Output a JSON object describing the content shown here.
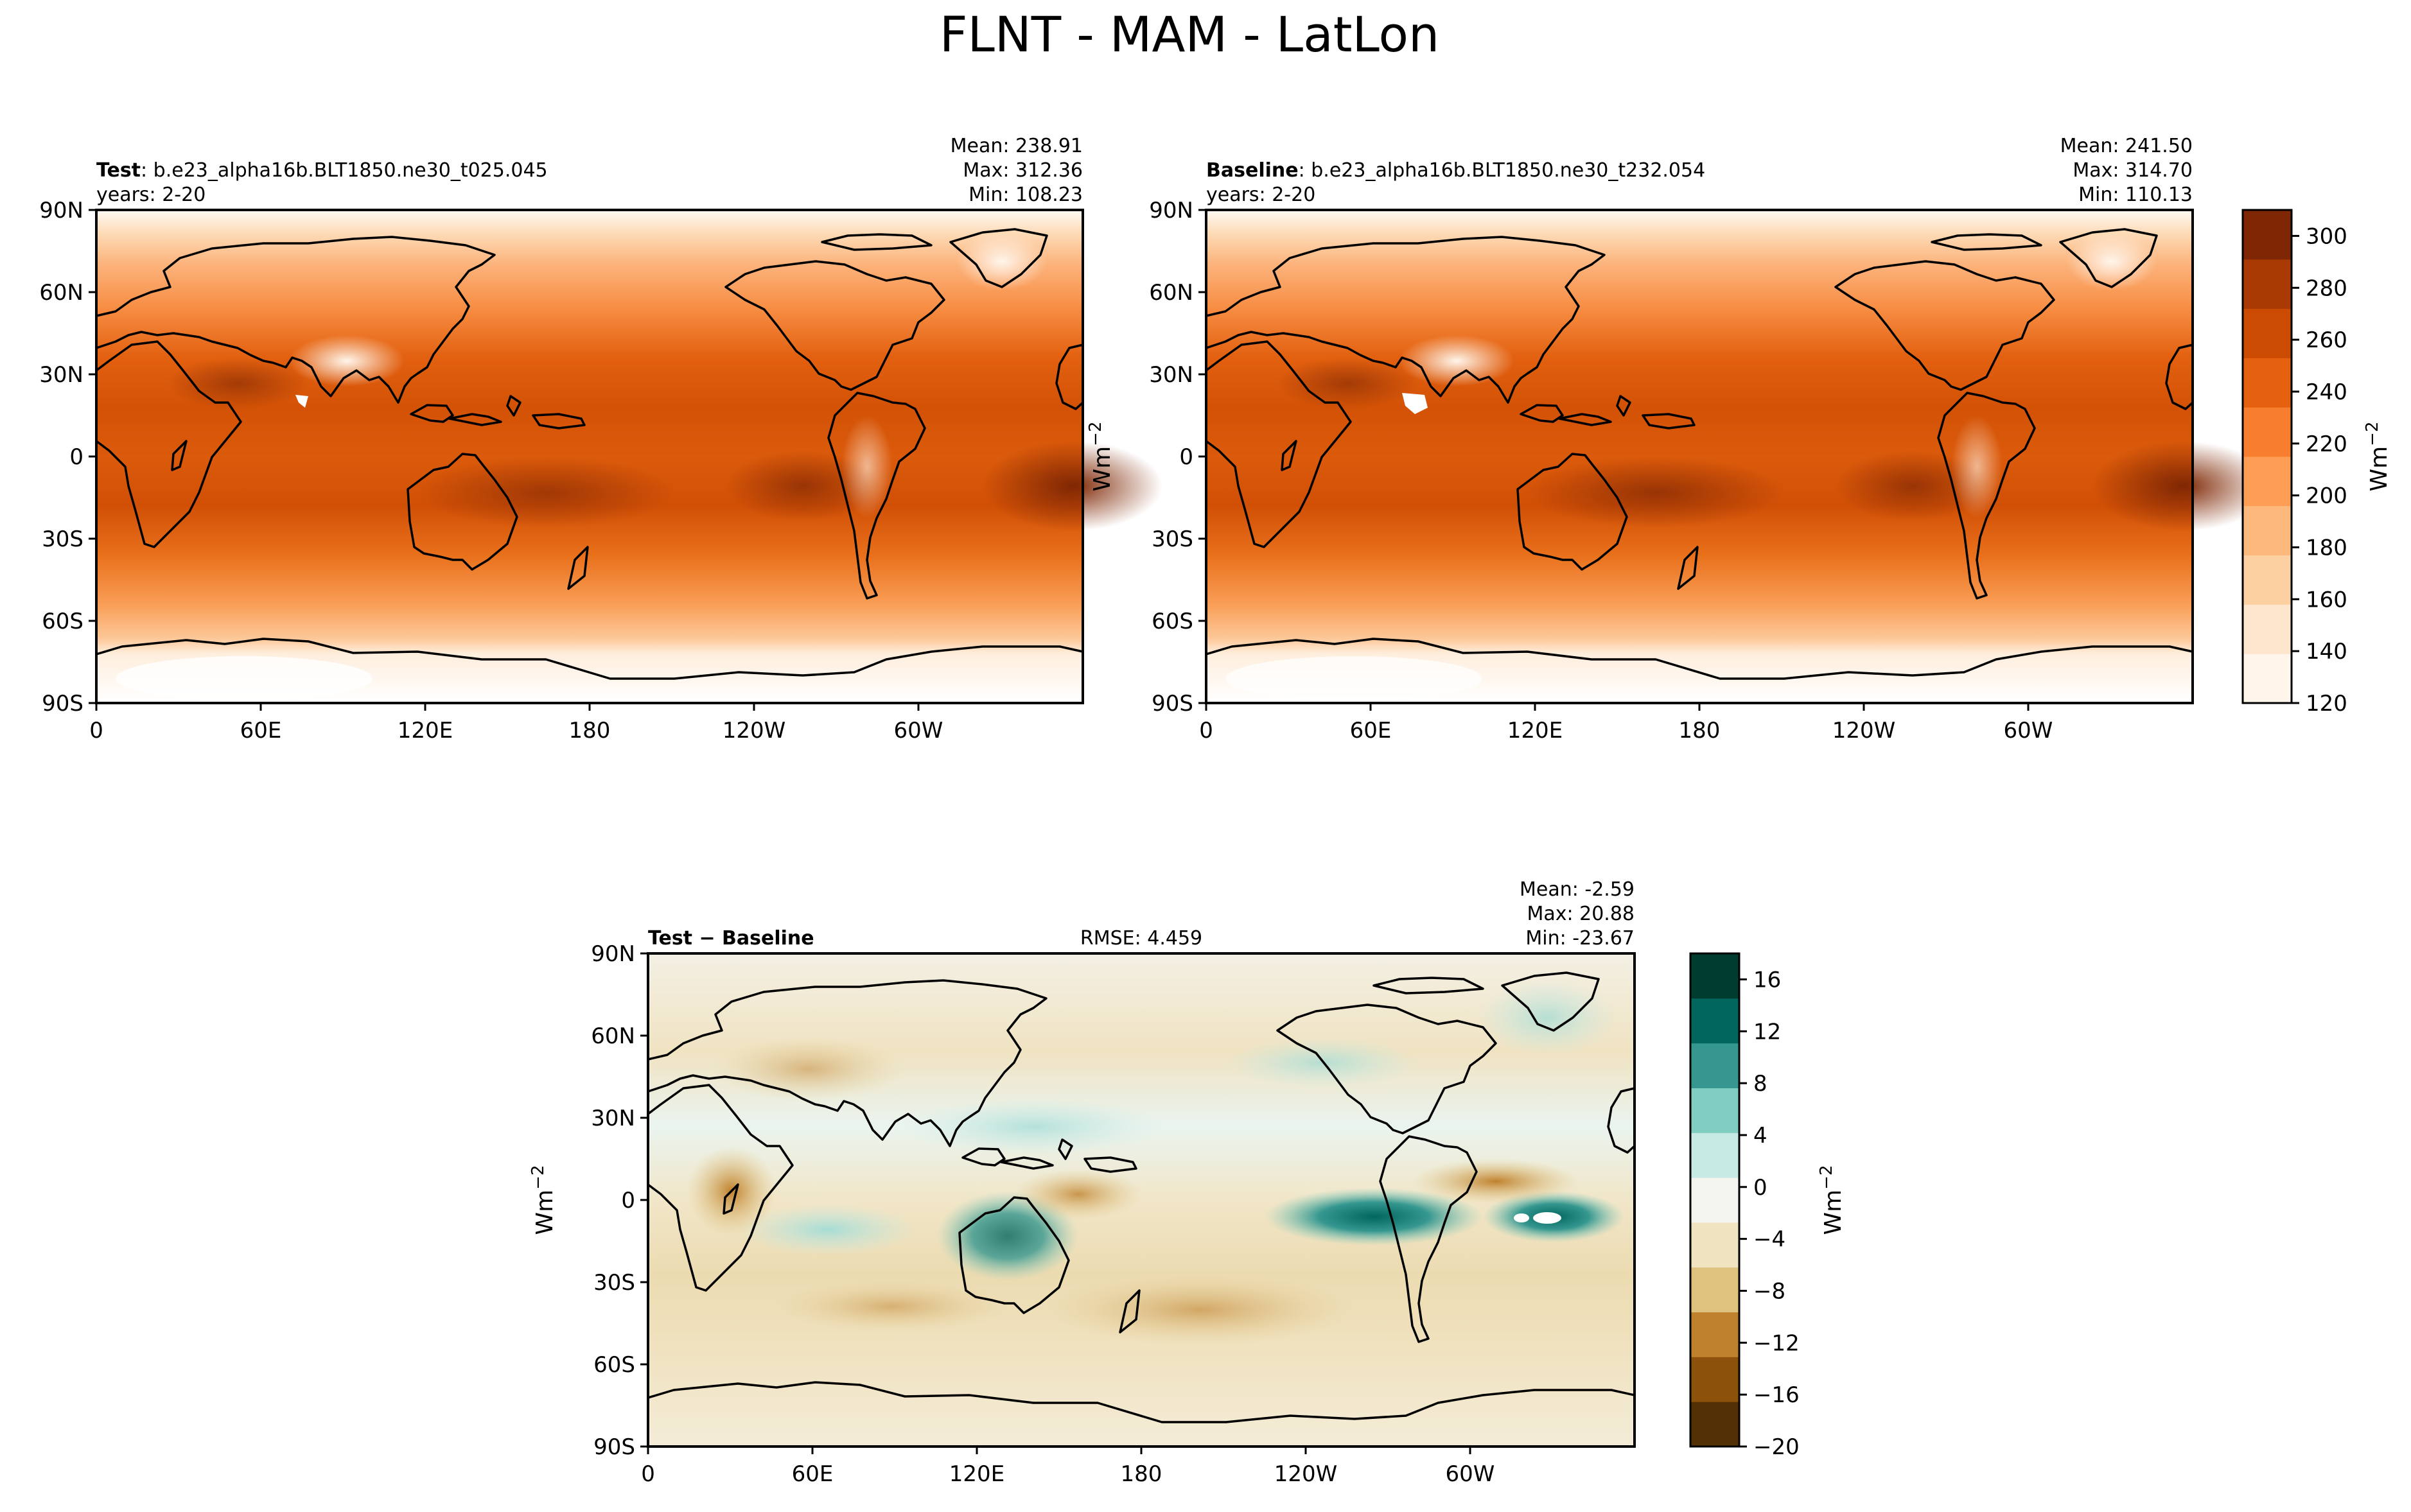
{
  "figure": {
    "title": "FLNT - MAM - LatLon"
  },
  "panels": [
    {
      "id": "test",
      "name_bold": "Test",
      "name_rest": ": b.e23_alpha16b.BLT1850.ne30_t025.045",
      "years": "years: 2-20",
      "mean": "Mean: 238.91",
      "max": "Max: 312.36",
      "min": "Min: 108.23"
    },
    {
      "id": "baseline",
      "name_bold": "Baseline",
      "name_rest": ": b.e23_alpha16b.BLT1850.ne30_t232.054",
      "years": "years: 2-20",
      "mean": "Mean: 241.50",
      "max": "Max: 314.70",
      "min": "Min: 110.13"
    },
    {
      "id": "diff",
      "name_bold": "Test − Baseline",
      "rmse": "RMSE: 4.459",
      "mean": "Mean: -2.59",
      "max": "Max: 20.88",
      "min": "Min: -23.67"
    }
  ],
  "axes": {
    "lat_ticks": [
      "90N",
      "60N",
      "30N",
      "0",
      "30S",
      "60S",
      "90S"
    ],
    "lon_ticks": [
      "0",
      "60E",
      "120E",
      "180",
      "120W",
      "60W"
    ]
  },
  "colorbars": {
    "units_main": "Wm",
    "units_sup": "−2",
    "top": {
      "colormap": "Oranges",
      "range": [
        120,
        310
      ],
      "ticks": [
        "300",
        "280",
        "260",
        "240",
        "220",
        "200",
        "180",
        "160",
        "140",
        "120"
      ],
      "colors": [
        "#fff5eb",
        "#fee6ce",
        "#fdd0a2",
        "#fdb97d",
        "#fd9e54",
        "#f67e2e",
        "#e5600f",
        "#cc4b02",
        "#a93a03",
        "#7f2704"
      ]
    },
    "diff": {
      "colormap": "BrBG",
      "range": [
        -20,
        18
      ],
      "ticks": [
        "16",
        "12",
        "8",
        "4",
        "0",
        "−4",
        "−8",
        "−12",
        "−16",
        "−20"
      ],
      "colors": [
        "#543005",
        "#8c510a",
        "#bf812d",
        "#dfc27d",
        "#f0e3bf",
        "#f5f5f0",
        "#c7eae5",
        "#80cdc1",
        "#35978f",
        "#01665e",
        "#003c30"
      ]
    }
  },
  "chart_data": {
    "type": "heatmap",
    "title": "FLNT - MAM - LatLon",
    "x_axis": "longitude",
    "y_axis": "latitude",
    "maps": [
      {
        "name": "Test",
        "mean": 238.91,
        "max": 312.36,
        "min": 108.23,
        "years": "2-20"
      },
      {
        "name": "Baseline",
        "mean": 241.5,
        "max": 314.7,
        "min": 110.13,
        "years": "2-20"
      },
      {
        "name": "Test − Baseline",
        "rmse": 4.459,
        "mean": -2.59,
        "max": 20.88,
        "min": -23.67
      }
    ]
  }
}
